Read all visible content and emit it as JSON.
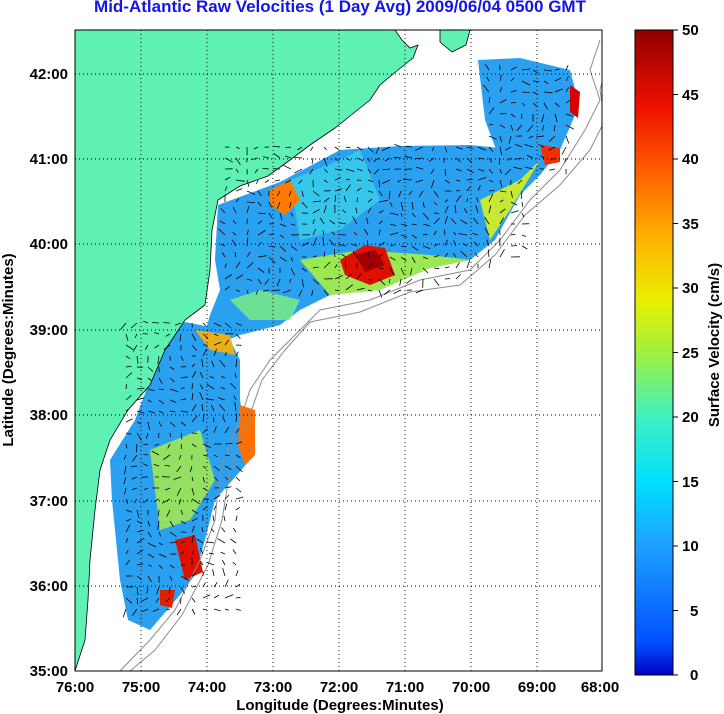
{
  "title": "Mid-Atlantic Raw Velocities (1 Day Avg) 2009/06/04 0500 GMT",
  "map": {
    "xlabel": "Longitude (Degrees:Minutes)",
    "ylabel": "Latitude (Degrees:Minutes)",
    "x_ticks": [
      "76:00",
      "75:00",
      "74:00",
      "73:00",
      "72:00",
      "71:00",
      "70:00",
      "69:00",
      "68:00"
    ],
    "y_ticks": [
      "42:00",
      "41:00",
      "40:00",
      "39:00",
      "38:00",
      "37:00",
      "36:00",
      "35:00"
    ],
    "lon_range": [
      -76,
      -68
    ],
    "lat_range": [
      35,
      42.5
    ],
    "grid": "dotted",
    "land_color": "#5ff0b4"
  },
  "colorbar": {
    "label": "Surface Velocity (cm/s)",
    "ticks": [
      "50",
      "45",
      "40",
      "35",
      "30",
      "25",
      "20",
      "15",
      "10",
      "5",
      "0"
    ],
    "range": [
      0,
      50
    ],
    "colormap": "jet"
  }
}
